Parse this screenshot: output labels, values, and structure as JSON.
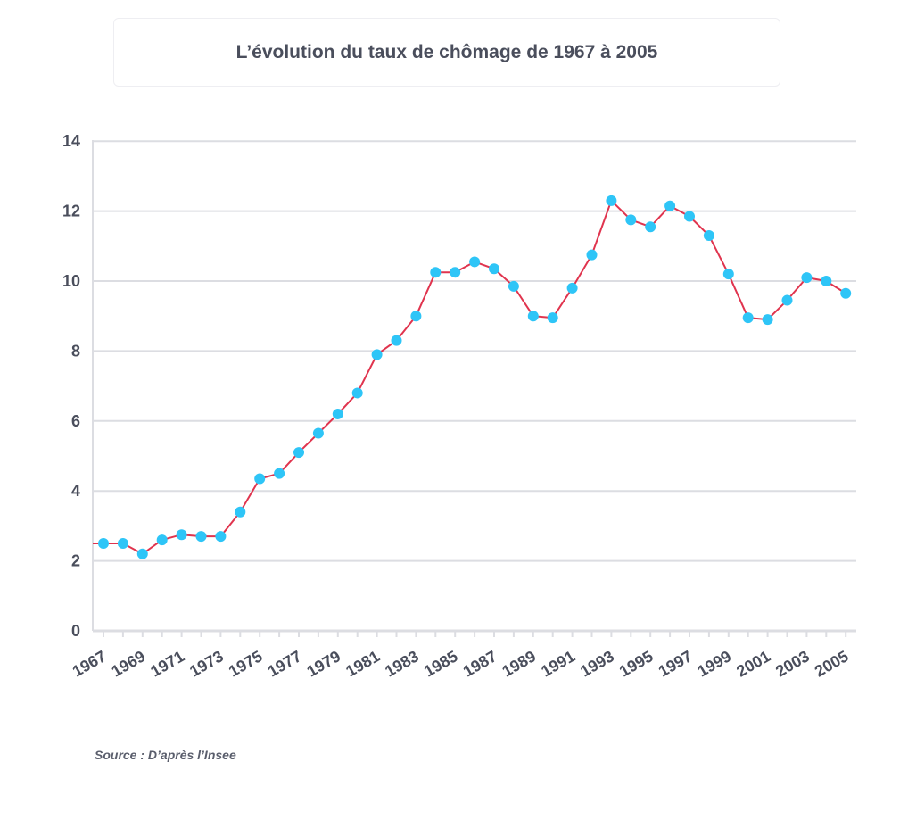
{
  "chart_data": {
    "type": "line",
    "title": "L’évolution du taux de chômage de 1967 à 2005",
    "xlabel": "",
    "ylabel": "",
    "ylim": [
      0,
      14
    ],
    "yticks": [
      0,
      2,
      4,
      6,
      8,
      10,
      12,
      14
    ],
    "xticks": [
      "1967",
      "1969",
      "1971",
      "1973",
      "1975",
      "1977",
      "1979",
      "1981",
      "1983",
      "1985",
      "1987",
      "1989",
      "1991",
      "1993",
      "1995",
      "1997",
      "1999",
      "2001",
      "2003",
      "2005"
    ],
    "x": [
      1967,
      1968,
      1969,
      1970,
      1971,
      1972,
      1973,
      1974,
      1975,
      1976,
      1977,
      1978,
      1979,
      1980,
      1981,
      1982,
      1983,
      1984,
      1985,
      1986,
      1987,
      1988,
      1989,
      1990,
      1991,
      1992,
      1993,
      1994,
      1995,
      1996,
      1997,
      1998,
      1999,
      2000,
      2001,
      2002,
      2003,
      2004,
      2005
    ],
    "series": [
      {
        "name": "Taux de chômage",
        "values": [
          2.5,
          2.5,
          2.2,
          2.6,
          2.75,
          2.7,
          2.7,
          3.4,
          4.35,
          4.5,
          5.1,
          5.65,
          6.2,
          6.8,
          7.9,
          8.3,
          9.0,
          10.25,
          10.25,
          10.55,
          10.35,
          9.85,
          9.0,
          8.95,
          9.8,
          10.75,
          12.3,
          11.75,
          11.55,
          12.15,
          11.85,
          11.3,
          10.2,
          8.95,
          8.9,
          9.45,
          10.1,
          10.0,
          9.65
        ],
        "line_color": "#e0344e",
        "marker_color": "#2ec5f7"
      }
    ],
    "grid": true
  },
  "source": "Source : D’après l’Insee"
}
